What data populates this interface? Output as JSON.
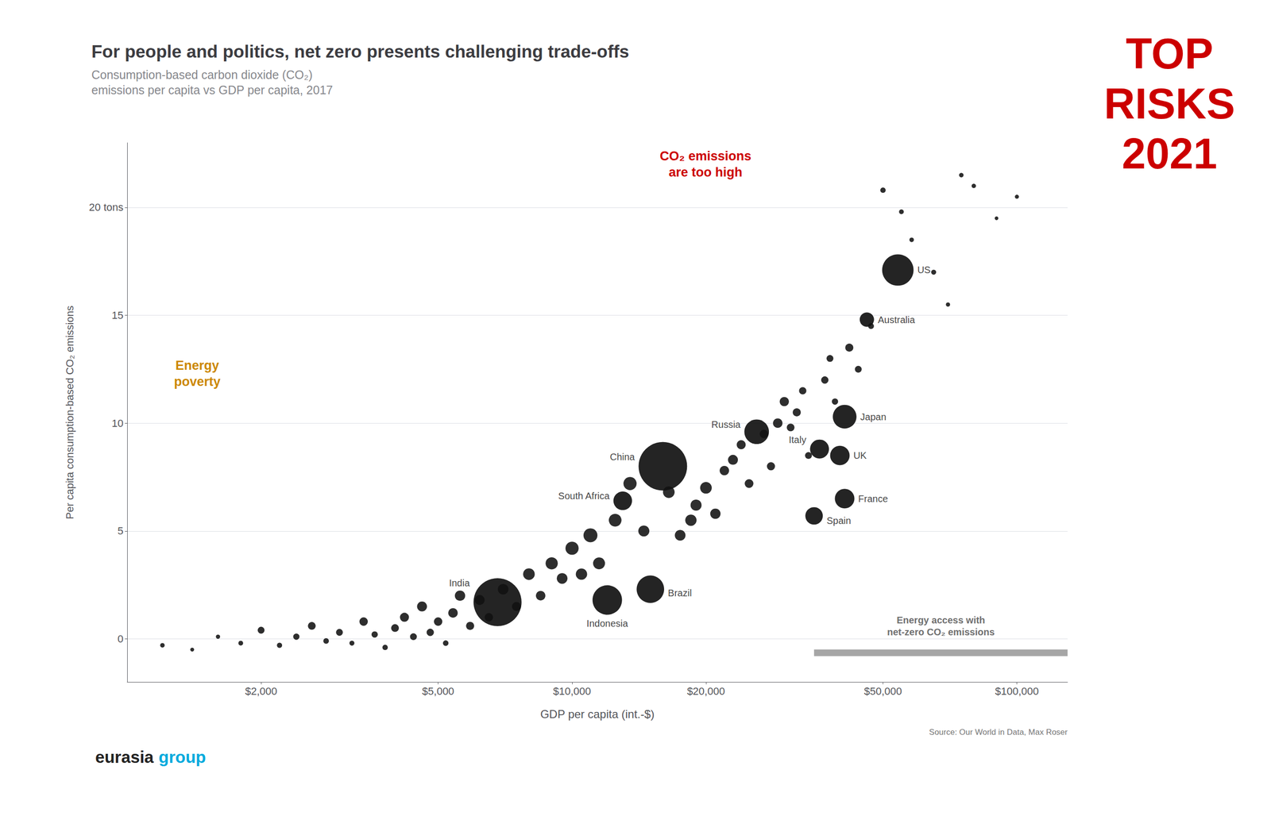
{
  "chart_data": {
    "type": "scatter",
    "title": "For people and politics, net zero presents challenging trade-offs",
    "subtitle": "Consumption-based carbon dioxide (CO₂)\nemissions per capita vs GDP per capita, 2017",
    "xlabel": "GDP per capita (int.-$)",
    "ylabel": "Per capita consumption-based CO₂ emissions",
    "source": "Source: Our World in Data, Max Roser",
    "log": "x",
    "grid": true,
    "color": "#111111",
    "xlim": [
      1000,
      130000
    ],
    "xticks": [
      {
        "value": 2000,
        "label": "$2,000"
      },
      {
        "value": 5000,
        "label": "$5,000"
      },
      {
        "value": 10000,
        "label": "$10,000"
      },
      {
        "value": 20000,
        "label": "$20,000"
      },
      {
        "value": 50000,
        "label": "$50,000"
      },
      {
        "value": 100000,
        "label": "$100,000"
      }
    ],
    "ylim": [
      -2,
      23
    ],
    "yticks": [
      0,
      5,
      10,
      15,
      {
        "value": 20,
        "label": "20 tons"
      }
    ],
    "annotations": [
      {
        "text": "CO₂ emissions\nare too high",
        "color": "#CC0000"
      },
      {
        "text": "Energy\npoverty",
        "color": "#CC8800"
      },
      {
        "text": "Energy access with\nnet-zero CO₂ emissions",
        "color": "#707070",
        "x": [
          35000,
          130000
        ],
        "y": -0.65
      },
      {
        "text": "TOP\nRISKS\n2021",
        "color": "#CC0000"
      },
      {
        "text": "eurasia",
        "color": "#222222"
      },
      {
        "text": "group",
        "color": "#00AADD"
      }
    ],
    "series": [
      {
        "labels": [
          "US",
          "Australia",
          "Japan",
          "UK",
          "Italy",
          "France",
          "Spain",
          "Russia",
          "China",
          "South Africa",
          "Brazil",
          "Indonesia",
          "India"
        ],
        "x": [
          54000,
          46000,
          41000,
          40000,
          36000,
          41000,
          35000,
          26000,
          16000,
          13000,
          15000,
          12000,
          6800
        ],
        "values": [
          17.1,
          14.8,
          10.3,
          8.5,
          8.8,
          6.5,
          5.7,
          9.6,
          8.0,
          6.4,
          2.3,
          1.8,
          1.7
        ],
        "population": [
          325000000,
          24000000,
          127000000,
          66000000,
          60000000,
          67000000,
          46000000,
          144000000,
          1390000000,
          57000000,
          209000000,
          264000000,
          1339000000
        ]
      },
      {
        "x": [
          1200,
          1400,
          1600,
          1800,
          2000,
          2200,
          2400,
          2600,
          2800,
          3000,
          3200,
          3400,
          3600,
          3800,
          4000,
          4200,
          4400,
          4600,
          4800,
          5000,
          5200,
          5400,
          5600,
          5900,
          6200,
          6500,
          7000,
          7500,
          8000,
          8500,
          9000,
          9500,
          10000,
          10500,
          11000,
          11500,
          12500,
          13500,
          14500,
          16500,
          17500,
          18500,
          19000,
          20000,
          21000,
          22000,
          23000,
          24000,
          25000,
          27000,
          28000,
          29000,
          30000,
          31000,
          32000,
          33000,
          34000,
          37000,
          38000,
          39000,
          42000,
          44000,
          47000,
          50000,
          55000,
          58000,
          65000,
          70000,
          75000,
          80000,
          90000,
          100000
        ],
        "values": [
          -0.3,
          -0.5,
          0.1,
          -0.2,
          0.4,
          -0.3,
          0.1,
          0.6,
          -0.1,
          0.3,
          -0.2,
          0.8,
          0.2,
          -0.4,
          0.5,
          1.0,
          0.1,
          1.5,
          0.3,
          0.8,
          -0.2,
          1.2,
          2.0,
          0.6,
          1.8,
          1.0,
          2.3,
          1.5,
          3.0,
          2.0,
          3.5,
          2.8,
          4.2,
          3.0,
          4.8,
          3.5,
          5.5,
          7.2,
          5.0,
          6.8,
          4.8,
          5.5,
          6.2,
          7.0,
          5.8,
          7.8,
          8.3,
          9.0,
          7.2,
          9.5,
          8.0,
          10.0,
          11.0,
          9.8,
          10.5,
          11.5,
          8.5,
          12.0,
          13.0,
          11.0,
          13.5,
          12.5,
          14.5,
          20.8,
          19.8,
          18.5,
          17.0,
          15.5,
          21.5,
          21.0,
          19.5,
          20.5
        ],
        "population": [
          500000,
          300000,
          400000,
          600000,
          2000000,
          800000,
          1500000,
          3000000,
          1000000,
          2000000,
          700000,
          4000000,
          1500000,
          900000,
          3000000,
          5000000,
          2000000,
          7000000,
          2500000,
          4000000,
          1000000,
          6000000,
          8000000,
          3500000,
          7000000,
          4000000,
          9000000,
          5000000,
          12000000,
          6000000,
          14000000,
          9000000,
          18000000,
          11000000,
          22000000,
          13000000,
          16000000,
          18000000,
          10000000,
          12000000,
          9000000,
          11000000,
          10000000,
          12000000,
          8000000,
          6000000,
          7000000,
          5000000,
          4500000,
          4000000,
          3500000,
          6000000,
          5500000,
          3000000,
          3500000,
          2500000,
          2000000,
          2500000,
          2000000,
          1500000,
          3500000,
          2000000,
          1200000,
          900000,
          600000,
          500000,
          700000,
          400000,
          500000,
          450000,
          250000,
          350000
        ]
      }
    ]
  }
}
